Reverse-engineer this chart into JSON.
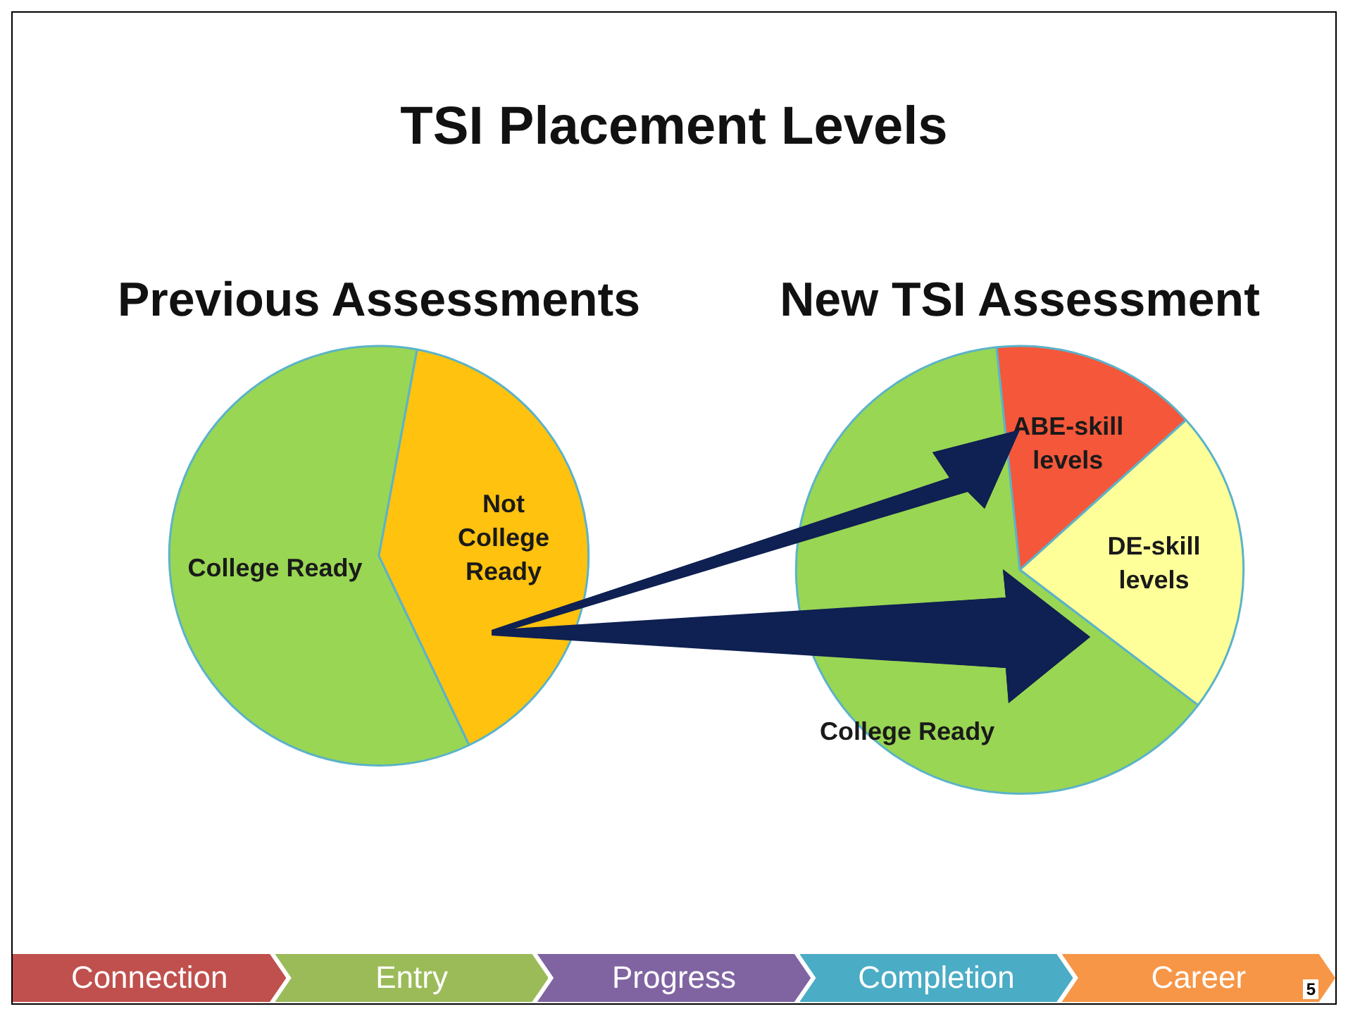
{
  "chart_data": [
    {
      "type": "pie",
      "title": "Previous Assessments",
      "categories": [
        "College Ready",
        "Not College Ready"
      ],
      "values": [
        60,
        40
      ],
      "colors": [
        "#99d653",
        "#ffc20e"
      ],
      "legend": false,
      "annotations": [
        "TSI Placement Levels",
        "Connection",
        "Entry",
        "Progress",
        "Completion",
        "Career",
        "5"
      ]
    },
    {
      "type": "pie",
      "title": "New TSI Assessment",
      "categories": [
        "ABE-skill levels",
        "DE-skill levels",
        "College Ready"
      ],
      "values": [
        15,
        22,
        63
      ],
      "colors": [
        "#f4573a",
        "#ffff99",
        "#99d653"
      ],
      "legend": false
    }
  ]
}
